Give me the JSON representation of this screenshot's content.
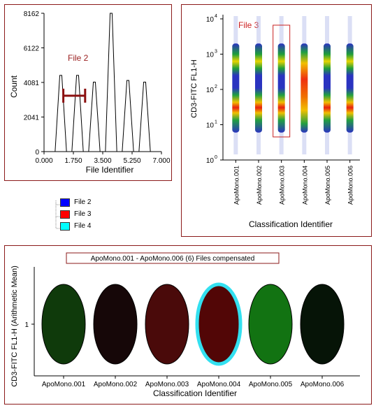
{
  "histogram": {
    "ylabel": "Count",
    "xlabel": "File Identifier",
    "annotation": "File 2",
    "yticks": [
      "0",
      "2041",
      "4081",
      "6122",
      "8162"
    ],
    "xticks": [
      "0.000",
      "1.750",
      "3.500",
      "5.250",
      "7.000"
    ]
  },
  "scatter": {
    "ylabel": "CD3-FITC FL1-H",
    "xlabel": "Classification Identifier",
    "annotation": "File 3",
    "categories": [
      "ApoMono.001",
      "ApoMono.002",
      "ApoMono.003",
      "ApoMono.004",
      "ApoMono.005",
      "ApoMono.006"
    ],
    "ytick_labels": [
      "10",
      "10",
      "10",
      "10",
      "10"
    ],
    "ytick_exponents": [
      "0",
      "1",
      "2",
      "3",
      "4"
    ]
  },
  "legend": {
    "items": [
      {
        "label": "File 2",
        "color": "#0000ff"
      },
      {
        "label": "File 3",
        "color": "#ff0000"
      },
      {
        "label": "File 4",
        "color": "#00ffff"
      }
    ]
  },
  "bottom": {
    "title": "ApoMono.001 - ApoMono.006 (6) Files compensated",
    "ylabel": "CD3-FITC FL1-H (Arithmetic Mean)",
    "xlabel": "Classification Identifier",
    "ytick": "1",
    "categories": [
      "ApoMono.001",
      "ApoMono.002",
      "ApoMono.003",
      "ApoMono.004",
      "ApoMono.005",
      "ApoMono.006"
    ],
    "fill_colors": [
      "#0f3a0b",
      "#160708",
      "#4a0a0a",
      "#520606",
      "#127312",
      "#061407"
    ],
    "highlight_index": 3,
    "highlight_color": "#33e0f0"
  },
  "chart_data": [
    {
      "type": "area",
      "xlabel": "File Identifier",
      "ylabel": "Count",
      "xlim": [
        0,
        7
      ],
      "ylim": [
        0,
        8162
      ],
      "series": [
        {
          "peaks": [
            {
              "x": 1.0,
              "y": 4500
            },
            {
              "x": 2.0,
              "y": 4500
            },
            {
              "x": 3.0,
              "y": 4100
            },
            {
              "x": 4.0,
              "y": 8162
            },
            {
              "x": 5.0,
              "y": 4200
            },
            {
              "x": 6.0,
              "y": 4100
            }
          ]
        }
      ]
    },
    {
      "type": "scatter",
      "xlabel": "Classification Identifier",
      "ylabel": "CD3-FITC FL1-H",
      "yscale": "log",
      "ylim": [
        1,
        10000
      ],
      "categories": [
        "ApoMono.001",
        "ApoMono.002",
        "ApoMono.003",
        "ApoMono.004",
        "ApoMono.005",
        "ApoMono.006"
      ]
    },
    {
      "type": "bar",
      "xlabel": "Classification Identifier",
      "ylabel": "CD3-FITC FL1-H (Arithmetic Mean)",
      "categories": [
        "ApoMono.001",
        "ApoMono.002",
        "ApoMono.003",
        "ApoMono.004",
        "ApoMono.005",
        "ApoMono.006"
      ]
    }
  ]
}
